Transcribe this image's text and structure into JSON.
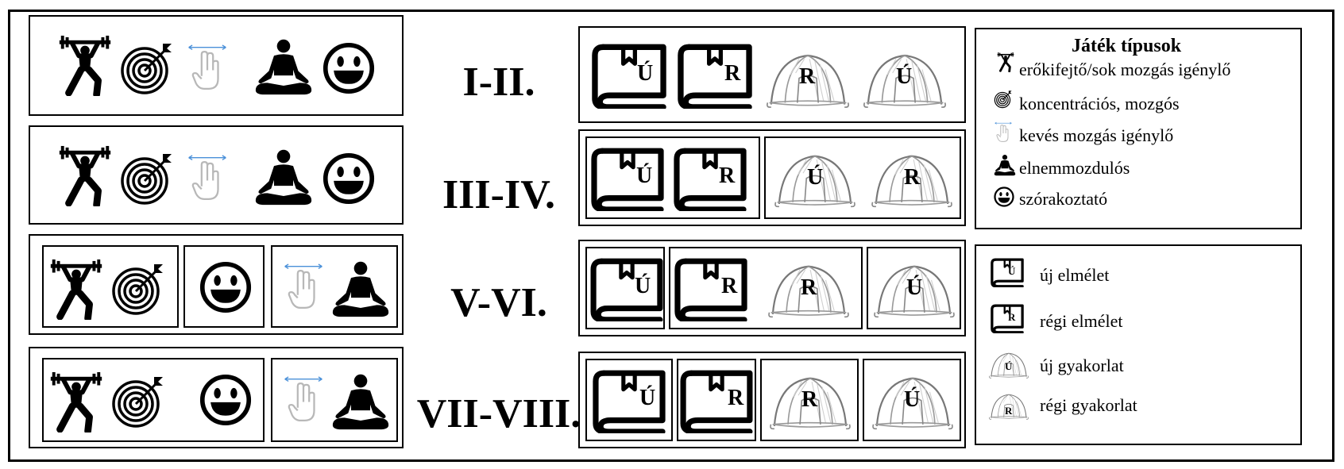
{
  "grades": [
    "I-II.",
    "III-IV.",
    "V-VI.",
    "VII-VIII."
  ],
  "letters": {
    "new": "Ú",
    "old": "R"
  },
  "game_legend": {
    "title": "Játék típusok",
    "items": [
      {
        "icon": "weightlifter-icon",
        "label": "erőkifejtő/sok mozgás igénylő"
      },
      {
        "icon": "target-icon",
        "label": "koncentrációs, mozgós"
      },
      {
        "icon": "swipe-hand-icon",
        "label": "kevés mozgás igénylő"
      },
      {
        "icon": "meditation-icon",
        "label": "elnemmozdulós"
      },
      {
        "icon": "smiley-icon",
        "label": "szórakoztató"
      }
    ]
  },
  "lesson_legend": {
    "items": [
      {
        "icon": "book-icon",
        "letter": "Ú",
        "label": "új elmélet"
      },
      {
        "icon": "book-icon",
        "letter": "R",
        "label": "régi elmélet"
      },
      {
        "icon": "tent-icon",
        "letter": "Ú",
        "label": "új gyakorlat"
      },
      {
        "icon": "tent-icon",
        "letter": "R",
        "label": "régi gyakorlat"
      }
    ]
  }
}
